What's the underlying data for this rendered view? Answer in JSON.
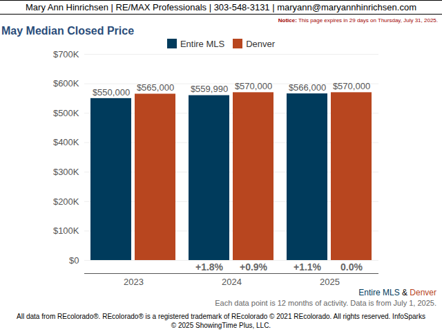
{
  "chart_data": {
    "type": "bar",
    "header": "Mary Ann Hinrichsen | RE/MAX Professionals | 303-548-3131 | maryann@maryannhinrichsen.com",
    "notice_label": "Notice:",
    "notice": "This page expires in 29 days on Thursday, July 31, 2025.",
    "title": "May Median Closed Price",
    "categories": [
      "2023",
      "2024",
      "2025"
    ],
    "series": [
      {
        "name": "Entire MLS",
        "color": "#003b5c",
        "values": [
          550000,
          559990,
          566000
        ],
        "value_labels": [
          "$550,000",
          "$559,990",
          "$566,000"
        ],
        "change_labels": [
          null,
          "+1.8%",
          "+1.1%"
        ]
      },
      {
        "name": "Denver",
        "color": "#b8461f",
        "values": [
          565000,
          570000,
          570000
        ],
        "value_labels": [
          "$565,000",
          "$570,000",
          "$570,000"
        ],
        "change_labels": [
          null,
          "+0.9%",
          "0.0%"
        ]
      }
    ],
    "ylim": [
      0,
      700000
    ],
    "yticks": [
      {
        "value": 0,
        "label": "$0"
      },
      {
        "value": 100000,
        "label": "$100K"
      },
      {
        "value": 200000,
        "label": "$200K"
      },
      {
        "value": 300000,
        "label": "$300K"
      },
      {
        "value": 400000,
        "label": "$400K"
      },
      {
        "value": 500000,
        "label": "$500K"
      },
      {
        "value": 600000,
        "label": "$600K"
      },
      {
        "value": 700000,
        "label": "$700K"
      }
    ],
    "grid": true,
    "data_labels": true,
    "legend": "top",
    "caption_separator": "&",
    "subcaption": "Each data point is 12 months of activity. Data is from July 1, 2025.",
    "footer": "All data from REcolorado®. REcolorado® is a registered trademark of REcolorado © 2021 REcolorado. All rights reserved. InfoSparks © 2025 ShowingTime Plus, LLC."
  }
}
